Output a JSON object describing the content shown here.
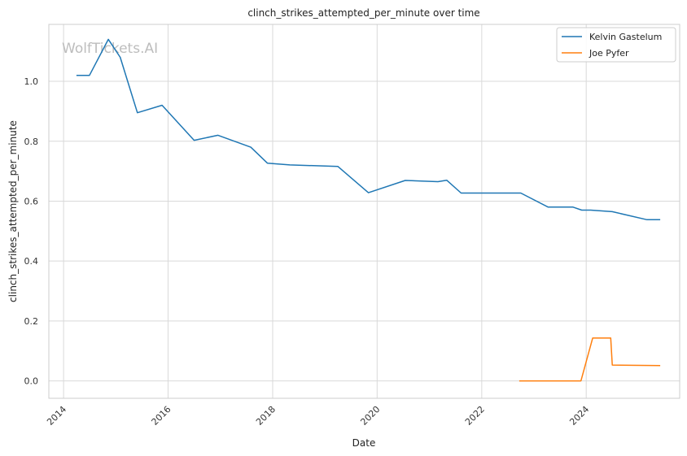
{
  "chart_data": {
    "type": "line",
    "title": "clinch_strikes_attempted_per_minute over time",
    "xlabel": "Date",
    "ylabel": "clinch_strikes_attempted_per_minute",
    "watermark": "WolfTickets.AI",
    "xlim": [
      "2013-09-20",
      "2025-10-15"
    ],
    "ylim": [
      -0.058,
      1.19
    ],
    "x_ticks": [
      "2014",
      "2016",
      "2018",
      "2020",
      "2022",
      "2024"
    ],
    "y_ticks": [
      "0.0",
      "0.2",
      "0.4",
      "0.6",
      "0.8",
      "1.0"
    ],
    "grid": true,
    "legend_position": "top-right",
    "series": [
      {
        "name": "Kelvin Gastelum",
        "color": "#1f77b4",
        "points": [
          [
            "2014-04-01",
            1.02
          ],
          [
            "2014-07-01",
            1.02
          ],
          [
            "2014-11-10",
            1.14
          ],
          [
            "2015-02-01",
            1.08
          ],
          [
            "2015-06-01",
            0.895
          ],
          [
            "2015-11-20",
            0.92
          ],
          [
            "2016-07-01",
            0.803
          ],
          [
            "2016-12-15",
            0.82
          ],
          [
            "2017-08-01",
            0.78
          ],
          [
            "2017-11-25",
            0.727
          ],
          [
            "2018-05-01",
            0.721
          ],
          [
            "2019-04-01",
            0.716
          ],
          [
            "2019-11-01",
            0.628
          ],
          [
            "2020-07-15",
            0.669
          ],
          [
            "2021-03-01",
            0.665
          ],
          [
            "2021-05-01",
            0.67
          ],
          [
            "2021-08-10",
            0.627
          ],
          [
            "2022-10-01",
            0.627
          ],
          [
            "2023-04-10",
            0.58
          ],
          [
            "2023-10-01",
            0.58
          ],
          [
            "2023-12-01",
            0.57
          ],
          [
            "2024-02-01",
            0.57
          ],
          [
            "2024-07-01",
            0.565
          ],
          [
            "2025-03-01",
            0.538
          ],
          [
            "2025-06-01",
            0.538
          ]
        ]
      },
      {
        "name": "Joe Pyfer",
        "color": "#ff7f0e",
        "points": [
          [
            "2022-09-20",
            0.0
          ],
          [
            "2023-11-25",
            0.0
          ],
          [
            "2024-02-15",
            0.143
          ],
          [
            "2024-06-20",
            0.143
          ],
          [
            "2024-07-01",
            0.053
          ],
          [
            "2025-06-01",
            0.051
          ]
        ]
      }
    ]
  }
}
